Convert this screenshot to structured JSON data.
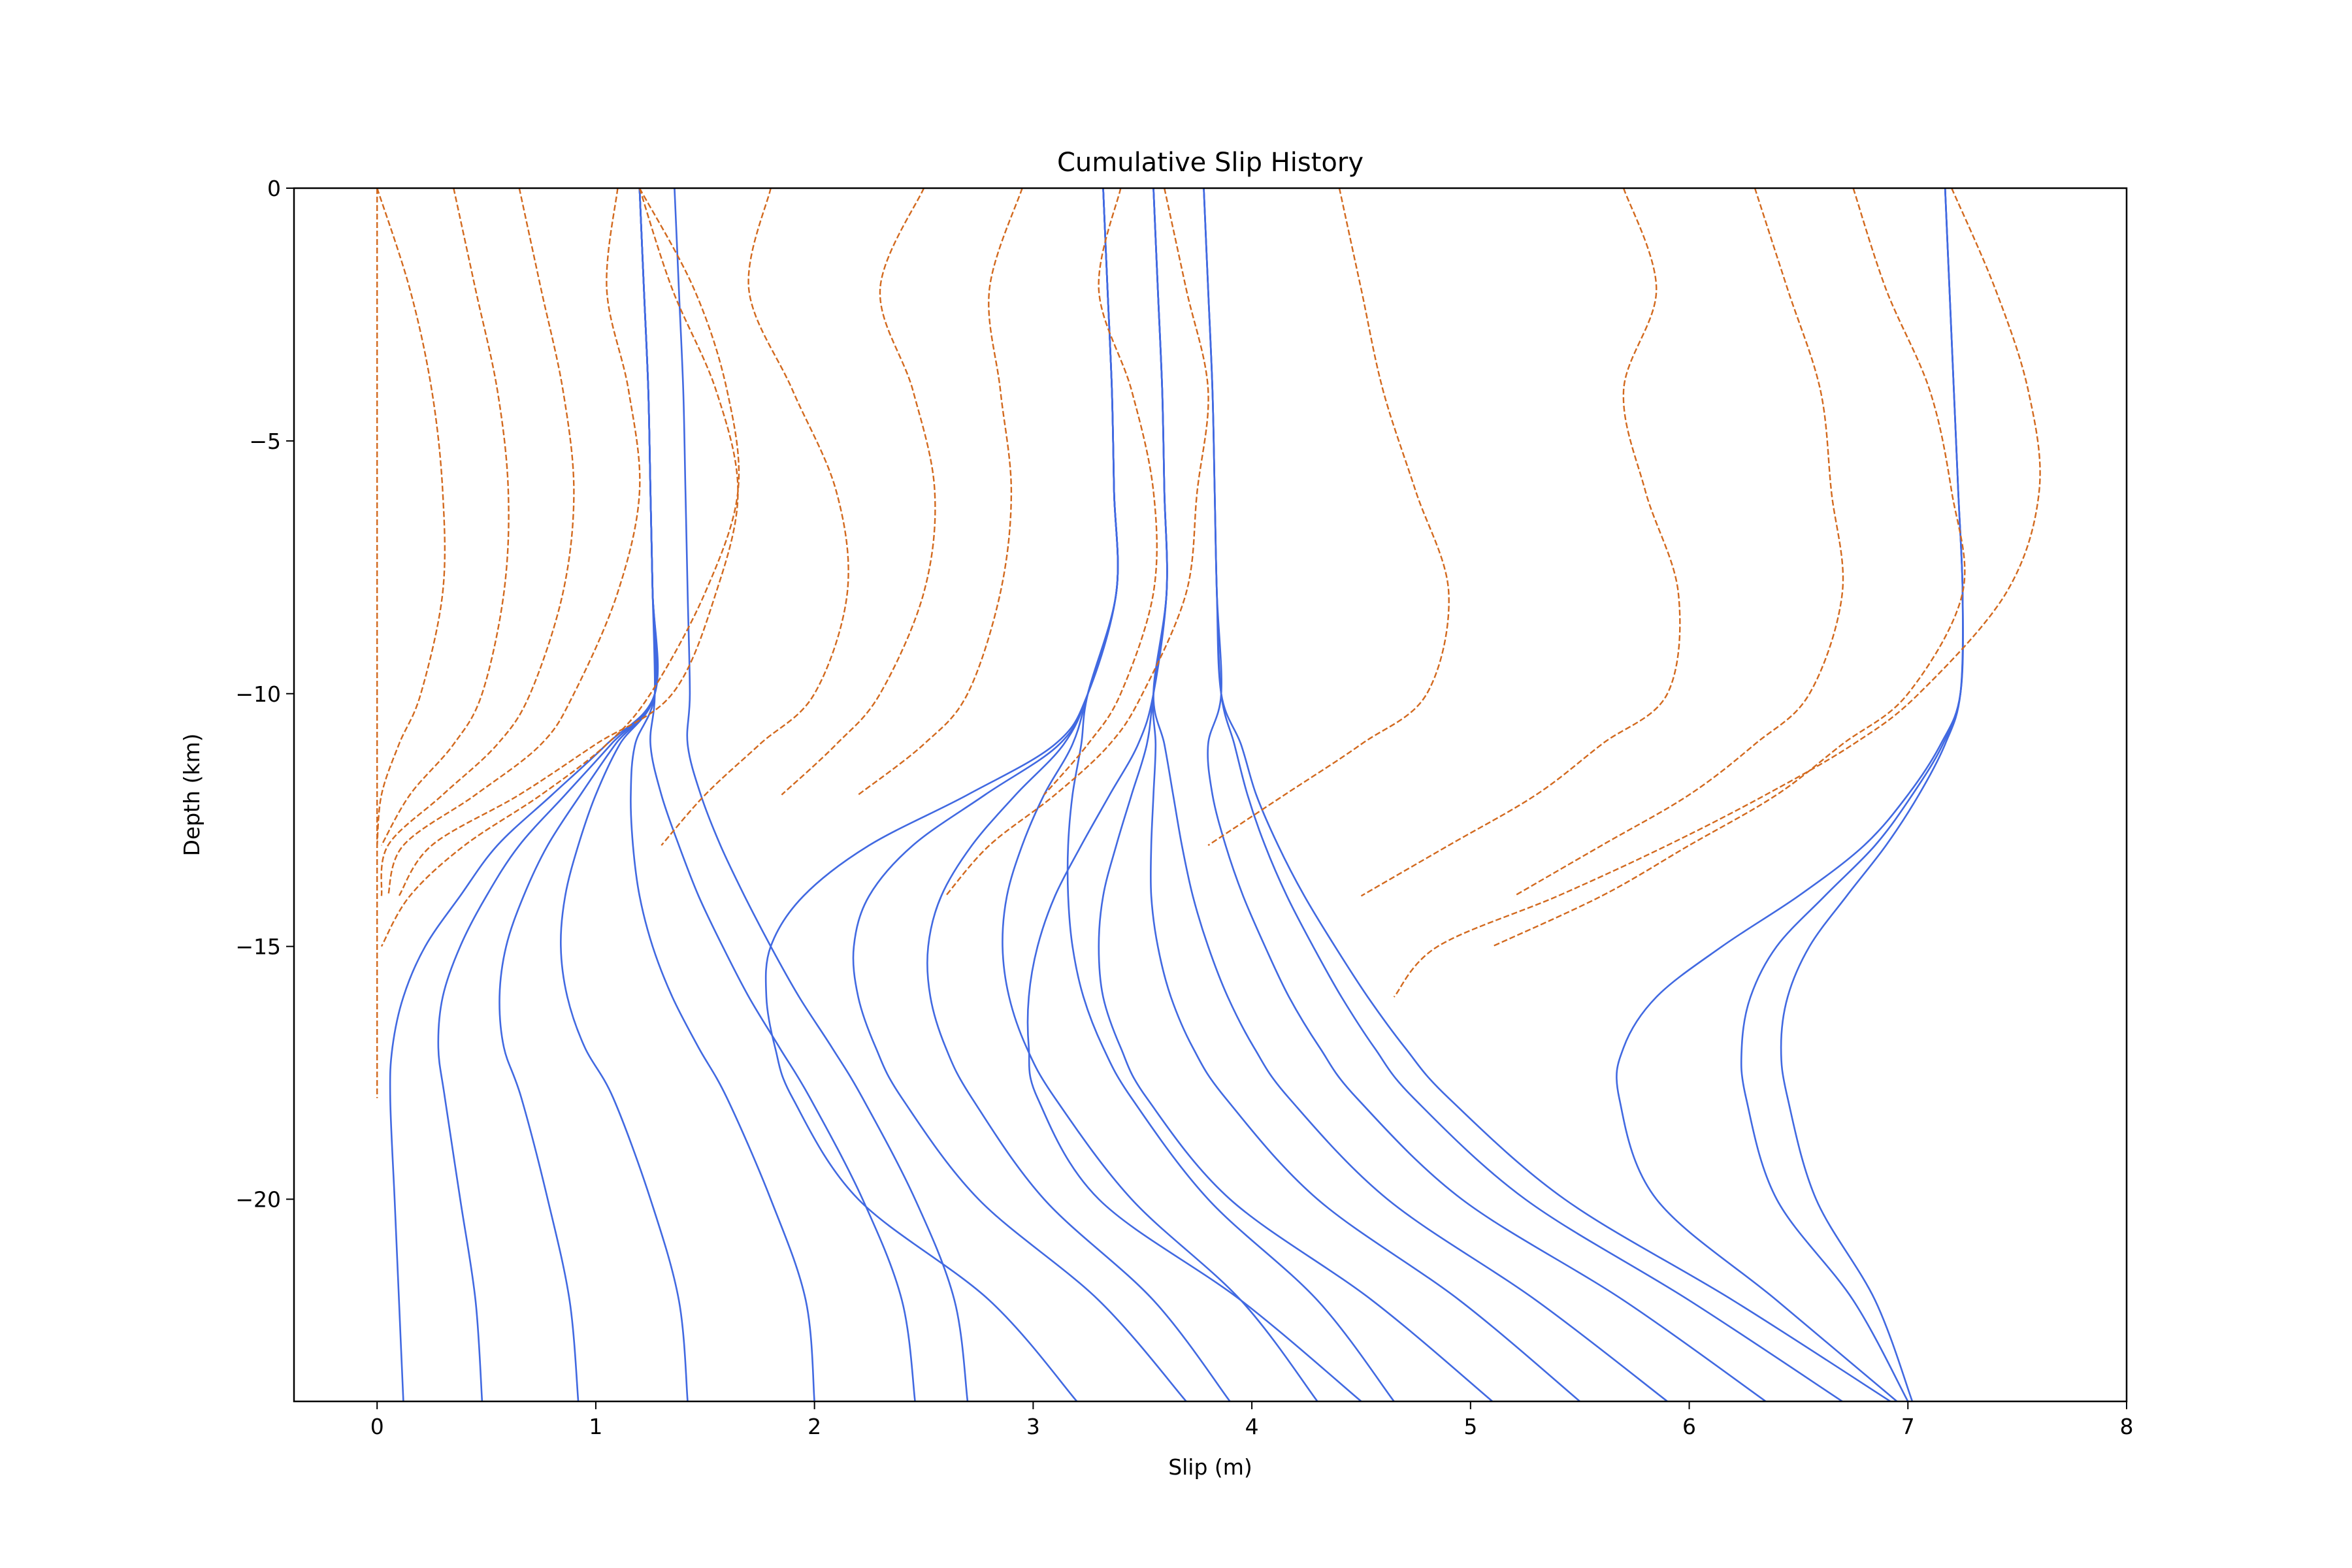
{
  "chart_data": {
    "type": "line",
    "title": "Cumulative Slip History",
    "xlabel": "Slip (m)",
    "ylabel": "Depth (km)",
    "xlim": [
      -0.38,
      8.0
    ],
    "ylim": [
      -24.0,
      0.0
    ],
    "xticks": [
      0,
      1,
      2,
      3,
      4,
      5,
      6,
      7,
      8
    ],
    "yticks": [
      0,
      -5,
      -10,
      -15,
      -20
    ],
    "xtick_labels": [
      "0",
      "1",
      "2",
      "3",
      "4",
      "5",
      "6",
      "7",
      "8"
    ],
    "ytick_labels": [
      "0",
      "−5",
      "−10",
      "−15",
      "−20"
    ],
    "grid": false,
    "legend": "none",
    "colors": {
      "interseismic": "#4169e1",
      "coseismic": "#d2691e"
    },
    "depth_knots": [
      0,
      -2,
      -4,
      -6,
      -8,
      -10,
      -11,
      -12,
      -13,
      -14,
      -15,
      -16,
      -17,
      -18,
      -20,
      -22,
      -24
    ],
    "series": [
      {
        "style": "solid",
        "color": "#4169e1",
        "profiles": [
          [
            1.2,
            1.22,
            1.24,
            1.25,
            1.26,
            1.27,
            1.05,
            0.8,
            0.55,
            0.38,
            0.22,
            0.12,
            0.07,
            0.06,
            0.08,
            0.1,
            0.12
          ],
          [
            1.2,
            1.22,
            1.24,
            1.25,
            1.26,
            1.27,
            1.07,
            0.86,
            0.65,
            0.5,
            0.38,
            0.3,
            0.28,
            0.31,
            0.38,
            0.45,
            0.48
          ],
          [
            1.2,
            1.22,
            1.24,
            1.25,
            1.26,
            1.27,
            1.09,
            0.93,
            0.78,
            0.67,
            0.59,
            0.56,
            0.58,
            0.66,
            0.78,
            0.88,
            0.92
          ],
          [
            1.2,
            1.22,
            1.24,
            1.25,
            1.26,
            1.27,
            1.11,
            1.0,
            0.92,
            0.86,
            0.84,
            0.87,
            0.95,
            1.08,
            1.25,
            1.38,
            1.42
          ],
          [
            1.2,
            1.22,
            1.24,
            1.25,
            1.26,
            1.27,
            1.18,
            1.16,
            1.17,
            1.2,
            1.26,
            1.35,
            1.47,
            1.6,
            1.8,
            1.96,
            2.0
          ],
          [
            1.2,
            1.22,
            1.24,
            1.25,
            1.26,
            1.27,
            1.25,
            1.3,
            1.38,
            1.47,
            1.58,
            1.7,
            1.84,
            1.98,
            2.22,
            2.4,
            2.46
          ],
          [
            1.36,
            1.38,
            1.4,
            1.41,
            1.42,
            1.43,
            1.42,
            1.48,
            1.57,
            1.68,
            1.8,
            1.93,
            2.08,
            2.22,
            2.46,
            2.64,
            2.7
          ],
          [
            3.32,
            3.34,
            3.36,
            3.37,
            3.38,
            3.25,
            3.1,
            2.7,
            2.25,
            1.95,
            1.8,
            1.78,
            1.82,
            1.9,
            2.2,
            2.8,
            3.2
          ],
          [
            3.32,
            3.34,
            3.36,
            3.37,
            3.38,
            3.25,
            3.12,
            2.78,
            2.45,
            2.25,
            2.18,
            2.2,
            2.28,
            2.4,
            2.75,
            3.3,
            3.7
          ],
          [
            3.32,
            3.34,
            3.36,
            3.37,
            3.38,
            3.25,
            3.14,
            2.92,
            2.72,
            2.58,
            2.52,
            2.53,
            2.6,
            2.72,
            3.05,
            3.55,
            3.9
          ],
          [
            3.32,
            3.34,
            3.36,
            3.37,
            3.38,
            3.25,
            3.18,
            3.05,
            2.95,
            2.88,
            2.86,
            2.89,
            2.97,
            3.1,
            3.45,
            3.95,
            4.3
          ],
          [
            3.32,
            3.34,
            3.36,
            3.37,
            3.38,
            3.25,
            3.22,
            3.18,
            3.16,
            3.16,
            3.18,
            3.23,
            3.32,
            3.45,
            3.8,
            4.3,
            4.65
          ],
          [
            3.55,
            3.57,
            3.59,
            3.6,
            3.61,
            3.55,
            3.48,
            3.35,
            3.22,
            3.1,
            3.02,
            2.98,
            2.98,
            3.02,
            3.3,
            3.95,
            4.5
          ],
          [
            3.55,
            3.57,
            3.59,
            3.6,
            3.61,
            3.55,
            3.52,
            3.45,
            3.38,
            3.32,
            3.3,
            3.32,
            3.4,
            3.52,
            3.9,
            4.55,
            5.1
          ],
          [
            3.55,
            3.57,
            3.59,
            3.6,
            3.61,
            3.55,
            3.56,
            3.55,
            3.54,
            3.54,
            3.57,
            3.63,
            3.73,
            3.88,
            4.3,
            4.95,
            5.5
          ],
          [
            3.55,
            3.57,
            3.59,
            3.6,
            3.61,
            3.55,
            3.6,
            3.64,
            3.68,
            3.73,
            3.8,
            3.89,
            4.01,
            4.17,
            4.62,
            5.3,
            5.9
          ],
          [
            3.78,
            3.8,
            3.82,
            3.83,
            3.84,
            3.86,
            3.8,
            3.82,
            3.88,
            3.96,
            4.06,
            4.17,
            4.31,
            4.48,
            4.96,
            5.7,
            6.35
          ],
          [
            3.78,
            3.8,
            3.82,
            3.83,
            3.84,
            3.86,
            3.92,
            3.98,
            4.06,
            4.16,
            4.28,
            4.41,
            4.56,
            4.74,
            5.25,
            6.0,
            6.7
          ],
          [
            3.78,
            3.8,
            3.82,
            3.83,
            3.84,
            3.86,
            3.95,
            4.02,
            4.12,
            4.24,
            4.38,
            4.53,
            4.7,
            4.9,
            5.43,
            6.2,
            6.92
          ],
          [
            7.17,
            7.19,
            7.21,
            7.23,
            7.25,
            7.24,
            7.15,
            7.0,
            6.8,
            6.5,
            6.15,
            5.85,
            5.7,
            5.68,
            5.85,
            6.4,
            6.95
          ],
          [
            7.17,
            7.19,
            7.21,
            7.23,
            7.25,
            7.24,
            7.16,
            7.02,
            6.85,
            6.62,
            6.4,
            6.28,
            6.24,
            6.26,
            6.4,
            6.75,
            7.0
          ],
          [
            7.17,
            7.19,
            7.21,
            7.23,
            7.25,
            7.24,
            7.17,
            7.05,
            6.9,
            6.72,
            6.55,
            6.45,
            6.42,
            6.45,
            6.58,
            6.85,
            7.02
          ]
        ]
      },
      {
        "style": "dashed",
        "color": "#d2691e",
        "profiles": [
          [
            0.0,
            0.0,
            0.0,
            0.0,
            0.0,
            0.0,
            0.0,
            0.0,
            0.0,
            0.0,
            0.0,
            0.0,
            0.0,
            0.0,
            null,
            null,
            null
          ],
          [
            0.0,
            0.15,
            0.25,
            0.3,
            0.3,
            0.2,
            0.1,
            0.02,
            0.0,
            null,
            null,
            null,
            null,
            null,
            null,
            null,
            null
          ],
          [
            0.35,
            0.45,
            0.55,
            0.6,
            0.58,
            0.48,
            0.35,
            0.15,
            0.02,
            null,
            null,
            null,
            null,
            null,
            null,
            null,
            null
          ],
          [
            0.65,
            0.75,
            0.85,
            0.9,
            0.85,
            0.7,
            0.55,
            0.3,
            0.05,
            0.02,
            null,
            null,
            null,
            null,
            null,
            null,
            null
          ],
          [
            1.1,
            1.05,
            1.15,
            1.2,
            1.1,
            0.9,
            0.75,
            0.45,
            0.12,
            0.05,
            null,
            null,
            null,
            null,
            null,
            null,
            null
          ],
          [
            1.2,
            1.35,
            1.55,
            1.65,
            1.55,
            1.35,
            1.0,
            0.65,
            0.25,
            0.1,
            null,
            null,
            null,
            null,
            null,
            null,
            null
          ],
          [
            1.8,
            1.7,
            1.9,
            2.1,
            2.15,
            2.0,
            1.75,
            1.5,
            1.3,
            null,
            null,
            null,
            null,
            null,
            null,
            null,
            null
          ],
          [
            2.5,
            2.3,
            2.45,
            2.55,
            2.5,
            2.3,
            2.1,
            1.85,
            null,
            null,
            null,
            null,
            null,
            null,
            null,
            null,
            null
          ],
          [
            2.95,
            2.8,
            2.85,
            2.9,
            2.85,
            2.7,
            2.5,
            2.2,
            null,
            null,
            null,
            null,
            null,
            null,
            null,
            null,
            null
          ],
          [
            3.4,
            3.3,
            3.45,
            3.55,
            3.55,
            3.4,
            3.25,
            3.05,
            null,
            null,
            null,
            null,
            null,
            null,
            null,
            null,
            null
          ],
          [
            4.4,
            4.5,
            4.6,
            4.75,
            4.9,
            4.8,
            4.5,
            4.15,
            3.8,
            null,
            null,
            null,
            null,
            null,
            null,
            null,
            null
          ],
          [
            5.7,
            5.85,
            5.7,
            5.8,
            5.95,
            5.9,
            5.6,
            5.3,
            4.9,
            4.5,
            null,
            null,
            null,
            null,
            null,
            null,
            null
          ],
          [
            6.3,
            6.45,
            6.6,
            6.65,
            6.7,
            6.55,
            6.3,
            6.0,
            5.6,
            5.2,
            null,
            null,
            null,
            null,
            null,
            null,
            null
          ],
          [
            6.75,
            6.9,
            7.1,
            7.2,
            7.25,
            7.0,
            6.7,
            6.4,
            6.0,
            5.6,
            5.1,
            null,
            null,
            null,
            null,
            null,
            null
          ],
          [
            1.2,
            1.45,
            1.6,
            1.65,
            1.5,
            1.25,
            1.05,
            0.75,
            0.4,
            0.15,
            0.02,
            null,
            null,
            null,
            null,
            null,
            null
          ],
          [
            3.6,
            3.7,
            3.8,
            3.75,
            3.7,
            3.5,
            3.35,
            3.1,
            2.8,
            2.6,
            null,
            null,
            null,
            null,
            null,
            null,
            null
          ],
          [
            7.2,
            7.4,
            7.55,
            7.6,
            7.45,
            7.05,
            6.75,
            6.35,
            5.9,
            5.4,
            4.85,
            4.65,
            null,
            null,
            null,
            null,
            null
          ]
        ]
      }
    ]
  }
}
